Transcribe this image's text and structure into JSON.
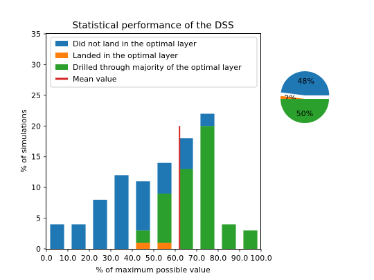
{
  "chart_data": [
    {
      "type": "bar",
      "stacked": true,
      "title": "Statistical performance of the DSS",
      "xlabel": "% of maximum possible value",
      "ylabel": "% of simulations",
      "xlim": [
        0,
        100
      ],
      "ylim": [
        0,
        35
      ],
      "xticks": [
        0,
        10,
        20,
        30,
        40,
        50,
        60,
        70,
        80,
        90,
        100
      ],
      "xtick_labels": [
        "0.0",
        "10.0",
        "20.0",
        "30.0",
        "40.0",
        "50.0",
        "60.0",
        "70.0",
        "80.0",
        "90.0",
        "100.0"
      ],
      "yticks": [
        0,
        5,
        10,
        15,
        20,
        25,
        30,
        35
      ],
      "ytick_labels": [
        "0",
        "5",
        "10",
        "15",
        "20",
        "25",
        "30",
        "35"
      ],
      "grid": false,
      "legend_position": "top-right",
      "bin_centers": [
        5,
        15,
        25,
        35,
        45,
        55,
        65,
        75,
        85,
        95
      ],
      "series": [
        {
          "name": "Landed in the optimal layer",
          "color": "#ff7f0e",
          "values": [
            0,
            0,
            0,
            0,
            1,
            1,
            0,
            0,
            0,
            0
          ]
        },
        {
          "name": "Drilled through majority of the optimal layer",
          "color": "#2ca02c",
          "values": [
            0,
            0,
            0,
            0,
            2,
            8,
            13,
            20,
            4,
            3
          ]
        },
        {
          "name": "Did not land in the optimal layer",
          "color": "#1f77b4",
          "values": [
            4,
            4,
            8,
            12,
            8,
            5,
            5,
            2,
            0,
            0
          ]
        }
      ],
      "legend_order": [
        "Did not land in the optimal layer",
        "Landed in the optimal layer",
        "Drilled through majority of the optimal layer",
        "Mean value"
      ],
      "mean_line": {
        "name": "Mean value",
        "color": "#d62728",
        "x": 62,
        "y_range": [
          0,
          20
        ]
      }
    },
    {
      "type": "pie",
      "slices": [
        {
          "label": "48%",
          "value": 48,
          "color": "#1f77b4",
          "exploded": true
        },
        {
          "label": "2%",
          "value": 2,
          "color": "#ff7f0e",
          "exploded": false
        },
        {
          "label": "50%",
          "value": 50,
          "color": "#2ca02c",
          "exploded": false
        }
      ]
    }
  ]
}
